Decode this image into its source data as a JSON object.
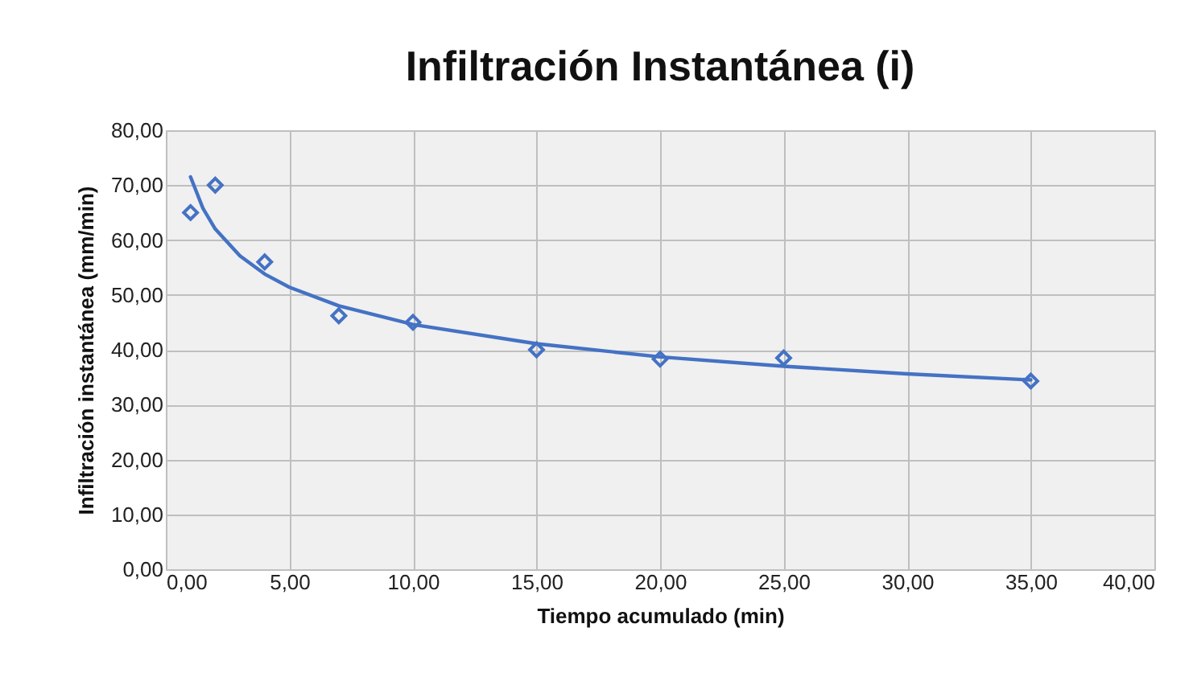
{
  "chart_data": {
    "type": "scatter",
    "title": "Infiltración Instantánea (i)",
    "xlabel": "Tiempo acumulado (min)",
    "ylabel": "Infiltración instantánea (mm/min)",
    "xlim": [
      0,
      40
    ],
    "ylim": [
      0,
      80
    ],
    "xticks": [
      {
        "value": 0,
        "label": "0,00"
      },
      {
        "value": 5,
        "label": "5,00"
      },
      {
        "value": 10,
        "label": "10,00"
      },
      {
        "value": 15,
        "label": "15,00"
      },
      {
        "value": 20,
        "label": "20,00"
      },
      {
        "value": 25,
        "label": "25,00"
      },
      {
        "value": 30,
        "label": "30,00"
      },
      {
        "value": 35,
        "label": "35,00"
      },
      {
        "value": 40,
        "label": "40,00"
      }
    ],
    "yticks": [
      {
        "value": 0,
        "label": "0,00"
      },
      {
        "value": 10,
        "label": "10,00"
      },
      {
        "value": 20,
        "label": "20,00"
      },
      {
        "value": 30,
        "label": "30,00"
      },
      {
        "value": 40,
        "label": "40,00"
      },
      {
        "value": 50,
        "label": "50,00"
      },
      {
        "value": 60,
        "label": "60,00"
      },
      {
        "value": 70,
        "label": "70,00"
      },
      {
        "value": 80,
        "label": "80,00"
      }
    ],
    "grid": true,
    "series": [
      {
        "color": "#4472c4",
        "marker": "diamond",
        "x": [
          1,
          2,
          4,
          7,
          10,
          15,
          20,
          25,
          35
        ],
        "values": [
          65,
          70,
          56,
          46.2,
          45,
          40,
          38.3,
          38.5,
          34.3
        ]
      },
      {
        "type": "line",
        "color": "#4472c4",
        "line_style": "solid",
        "x": [
          1,
          1.5,
          2,
          3,
          4,
          5,
          7,
          10,
          15,
          20,
          25,
          30,
          35
        ],
        "values": [
          71.5,
          65.8,
          62,
          57.1,
          53.8,
          51.4,
          48,
          44.6,
          41.1,
          38.7,
          37,
          35.6,
          34.5
        ]
      }
    ]
  }
}
